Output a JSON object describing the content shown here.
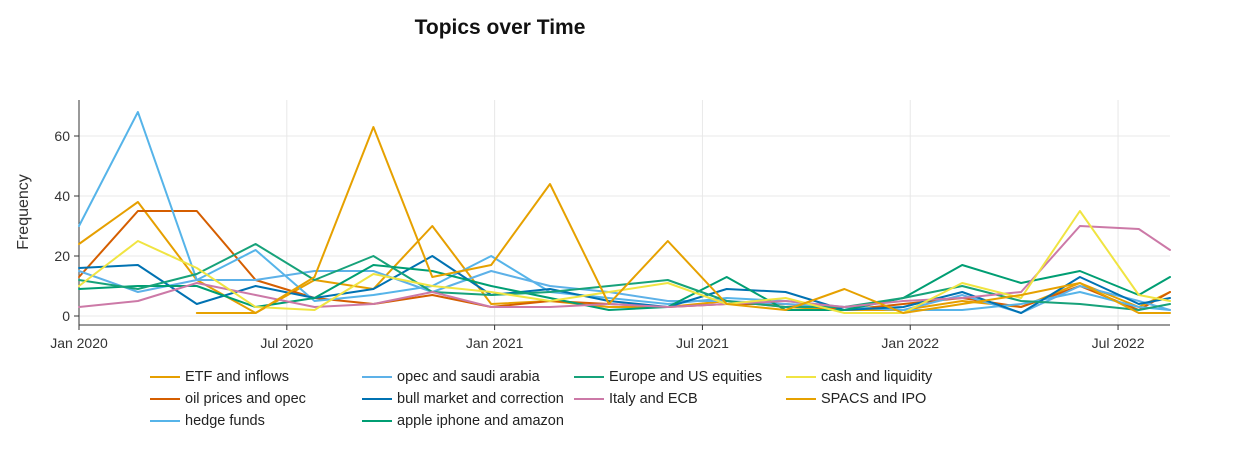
{
  "chart_data": {
    "type": "line",
    "title": "Topics over Time",
    "xlabel": "",
    "ylabel": "Frequency",
    "ylim": [
      -3,
      72
    ],
    "y_ticks": [
      0,
      20,
      40,
      60
    ],
    "x_ticks": [
      {
        "label": "Jan 2020",
        "month": 0
      },
      {
        "label": "Jul 2020",
        "month": 6
      },
      {
        "label": "Jan 2021",
        "month": 12
      },
      {
        "label": "Jul 2021",
        "month": 18
      },
      {
        "label": "Jan 2022",
        "month": 24
      },
      {
        "label": "Jul 2022",
        "month": 30
      }
    ],
    "x_range_months": [
      0,
      31.5
    ],
    "x_unit": "months since Jan 2020",
    "grid": true,
    "legend_position": "bottom",
    "series": [
      {
        "name": "ETF and inflows",
        "color": "#E69F00",
        "x": [
          0,
          1.7,
          3.4,
          5.1,
          6.8,
          8.5,
          10.2,
          11.9,
          13.6,
          15.3,
          17.0,
          18.7,
          20.4,
          22.1,
          23.8,
          25.5,
          27.2,
          28.9,
          30.6,
          31.5
        ],
        "y": [
          24,
          38,
          12,
          1,
          12,
          9,
          30,
          4,
          5,
          3,
          3,
          5,
          3,
          2,
          2,
          5,
          3,
          11,
          3,
          8
        ]
      },
      {
        "name": "oil prices and opec",
        "color": "#D55E00",
        "x": [
          0,
          1.7,
          3.4,
          5.1,
          6.8,
          8.5,
          10.2,
          11.9,
          13.6,
          15.3,
          17.0,
          18.7,
          20.4,
          22.1,
          23.8,
          25.5,
          27.2,
          28.9,
          30.6,
          31.5
        ],
        "y": [
          13,
          35,
          35,
          12,
          6,
          4,
          7,
          3,
          5,
          4,
          3,
          4,
          4,
          2,
          4,
          6,
          3,
          10,
          2,
          8
        ]
      },
      {
        "name": "hedge funds",
        "color": "#56B4E9",
        "x": [
          0,
          1.7,
          3.4,
          5.1,
          6.8,
          8.5,
          10.2,
          11.9,
          13.6,
          15.3,
          17.0,
          18.7,
          20.4,
          22.1,
          23.8,
          25.5,
          27.2,
          28.9,
          30.6,
          31.5
        ],
        "y": [
          30,
          68,
          12,
          22,
          5,
          7,
          10,
          20,
          8,
          6,
          4,
          6,
          5,
          3,
          2,
          2,
          4,
          8,
          3,
          2
        ]
      },
      {
        "name": "opec and saudi arabia",
        "color": "#5DB1E8",
        "x": [
          0,
          1.7,
          3.4,
          5.1,
          6.8,
          8.5,
          10.2,
          11.9,
          13.6,
          15.3,
          17.0,
          18.7,
          20.4,
          22.1,
          23.8,
          25.5,
          27.2,
          28.9,
          30.6,
          31.5
        ],
        "y": [
          15,
          8,
          12,
          12,
          15,
          15,
          8,
          15,
          10,
          8,
          5,
          5,
          4,
          3,
          2,
          7,
          1,
          10,
          5,
          2
        ]
      },
      {
        "name": "bull market and correction",
        "color": "#0072B2",
        "x": [
          0,
          1.7,
          3.4,
          5.1,
          6.8,
          8.5,
          10.2,
          11.9,
          13.6,
          15.3,
          17.0,
          18.7,
          20.4,
          22.1,
          23.8,
          25.5,
          27.2,
          28.9,
          30.6,
          31.5
        ],
        "y": [
          16,
          17,
          4,
          10,
          6,
          9,
          20,
          7,
          9,
          5,
          3,
          9,
          8,
          2,
          3,
          8,
          1,
          13,
          4,
          6
        ]
      },
      {
        "name": "apple iphone and amazon",
        "color": "#009E73",
        "x": [
          0,
          1.7,
          3.4,
          5.1,
          6.8,
          8.5,
          10.2,
          11.9,
          13.6,
          15.3,
          17.0,
          18.7,
          20.4,
          22.1,
          23.8,
          25.5,
          27.2,
          28.9,
          30.6,
          31.5
        ],
        "y": [
          9,
          10,
          10,
          3,
          6,
          17,
          15,
          10,
          6,
          2,
          3,
          13,
          2,
          2,
          6,
          17,
          11,
          15,
          7,
          13
        ]
      },
      {
        "name": "Europe and US equities",
        "color": "#17A27A",
        "x": [
          0,
          1.7,
          3.4,
          5.1,
          6.8,
          8.5,
          10.2,
          11.9,
          13.6,
          15.3,
          17.0,
          18.7,
          20.4,
          22.1,
          23.8,
          25.5,
          27.2,
          28.9,
          30.6,
          31.5
        ],
        "y": [
          12,
          9,
          14,
          24,
          12,
          20,
          8,
          7,
          8,
          10,
          12,
          5,
          3,
          3,
          6,
          10,
          5,
          4,
          2,
          4
        ]
      },
      {
        "name": "Italy and ECB",
        "color": "#CC79A7",
        "x": [
          0,
          1.7,
          3.4,
          5.1,
          6.8,
          8.5,
          10.2,
          11.9,
          13.6,
          15.3,
          17.0,
          18.7,
          20.4,
          22.1,
          23.8,
          25.5,
          27.2,
          28.9,
          30.6,
          31.5
        ],
        "y": [
          3,
          5,
          11,
          7,
          3,
          4,
          8,
          3,
          3,
          4,
          3,
          4,
          5,
          3,
          5,
          6,
          8,
          30,
          29,
          22
        ]
      },
      {
        "name": "cash and liquidity",
        "color": "#F0E442",
        "x": [
          0,
          1.7,
          3.4,
          5.1,
          6.8,
          8.5,
          10.2,
          11.9,
          13.6,
          15.3,
          17.0,
          18.7,
          20.4,
          22.1,
          23.8,
          25.5,
          27.2,
          28.9,
          30.6,
          31.5
        ],
        "y": [
          10,
          25,
          16,
          3,
          2,
          14,
          10,
          8,
          5,
          8,
          11,
          4,
          6,
          1,
          1,
          11,
          6,
          35,
          7,
          5
        ]
      },
      {
        "name": "SPACS and IPO",
        "color": "#E6A100",
        "x": [
          3.4,
          5.1,
          6.8,
          8.5,
          10.2,
          11.9,
          13.6,
          15.3,
          17.0,
          18.7,
          20.4,
          22.1,
          23.8,
          25.5,
          27.2,
          28.9,
          30.6,
          31.5
        ],
        "y": [
          1,
          1,
          13,
          63,
          13,
          17,
          44,
          4,
          25,
          4,
          2,
          9,
          1,
          4,
          7,
          11,
          1,
          1
        ]
      }
    ]
  }
}
